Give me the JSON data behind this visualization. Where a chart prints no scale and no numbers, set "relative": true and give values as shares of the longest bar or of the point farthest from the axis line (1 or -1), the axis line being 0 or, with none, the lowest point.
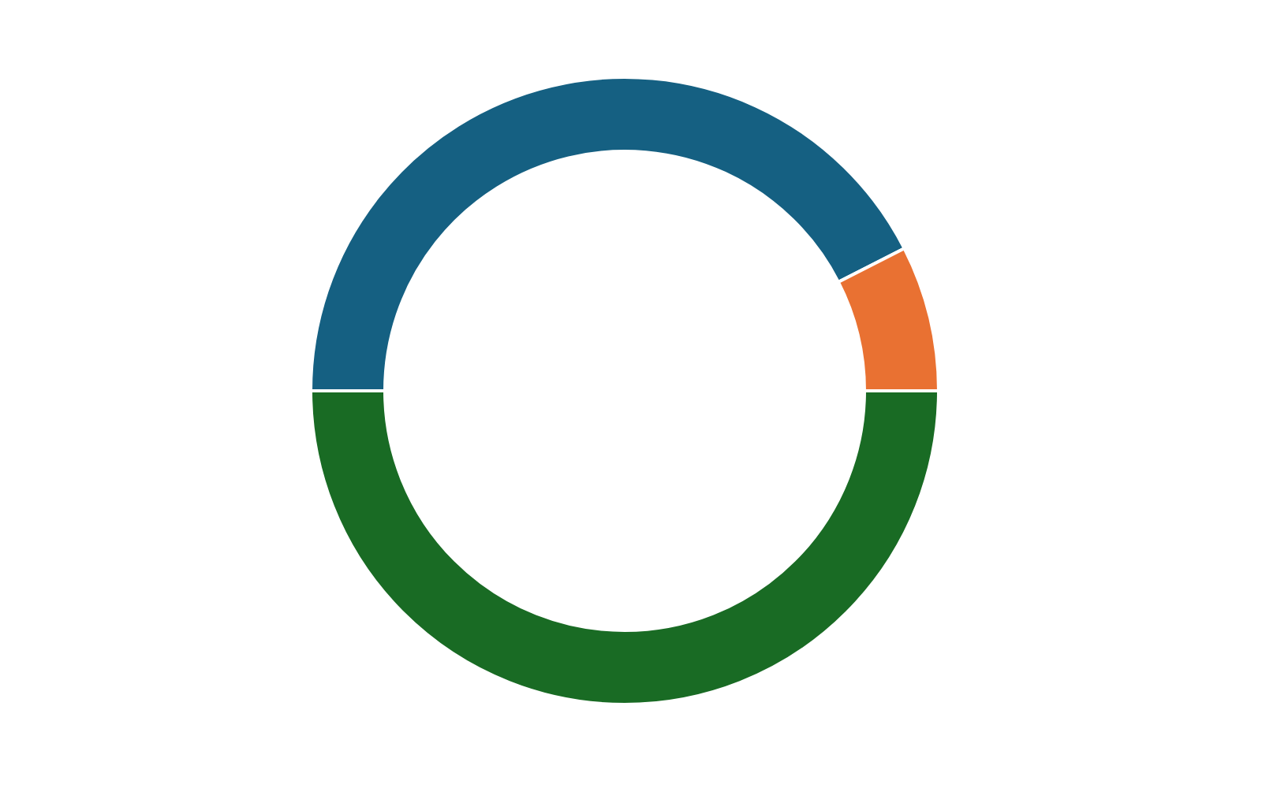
{
  "chart_data": {
    "type": "donut",
    "relative": true,
    "categories": [
      null,
      null,
      null
    ],
    "values": [
      42.5,
      7.5,
      50
    ],
    "colors": [
      "#156082",
      "#e97132",
      "#196b24"
    ],
    "legend": false
  }
}
